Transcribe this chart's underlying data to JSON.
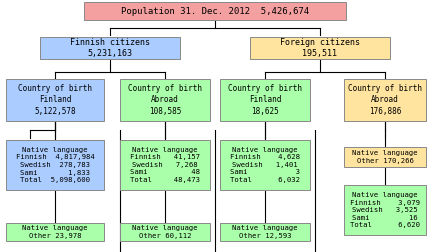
{
  "title": "Population 31. Dec. 2012  5,426,674",
  "title_bg": "#f4a0a0",
  "title_border": "#888888",
  "finnish_citizens_text": "Finnish citizens\n5,231,163",
  "finnish_citizens_bg": "#aaccff",
  "finnish_citizens_border": "#888888",
  "foreign_citizens_text": "Foreign citizens\n195,511",
  "foreign_citizens_bg": "#ffe4a0",
  "foreign_citizens_border": "#888888",
  "green_bg": "#aaffaa",
  "green_border": "#888888",
  "yellow_bg": "#ffe4a0",
  "yellow_border": "#888888",
  "blue_bg": "#aaccff",
  "blue_border": "#888888",
  "bg_color": "#ffffff",
  "line_color": "#000000"
}
